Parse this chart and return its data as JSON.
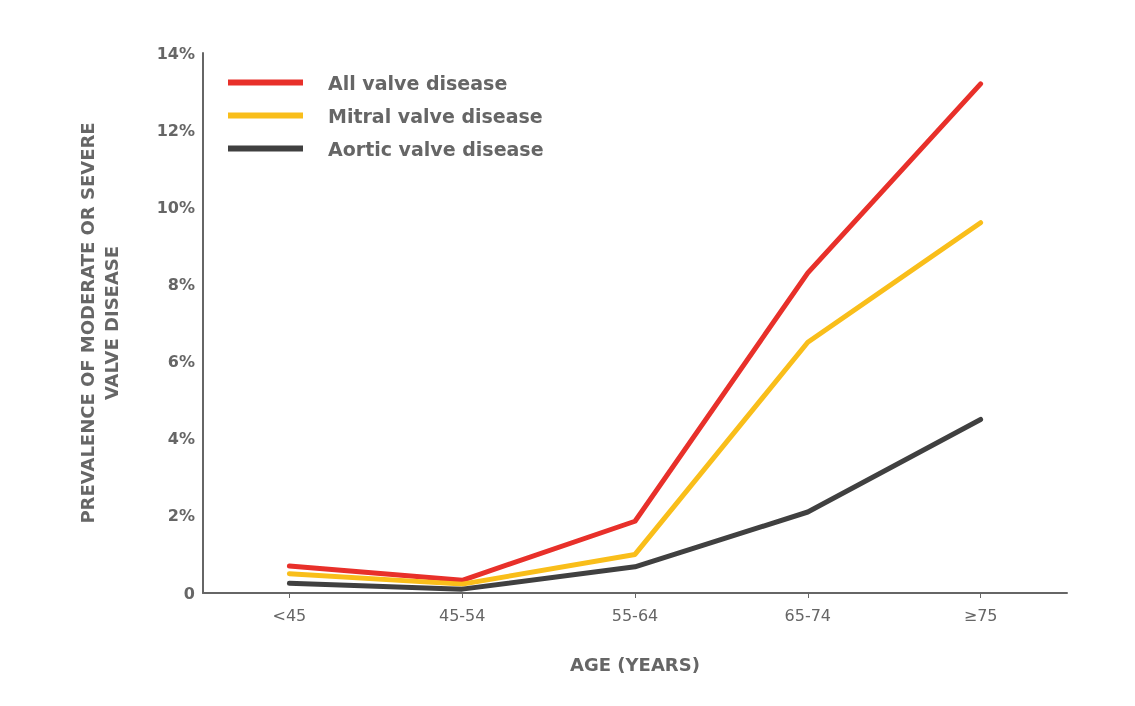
{
  "chart_data": {
    "type": "line",
    "xlabel": "AGE (YEARS)",
    "ylabel": "PREVALENCE OF MODERATE OR SEVERE\nVALVE DISEASE",
    "categories": [
      "<45",
      "45-54",
      "55-64",
      "65-74",
      "≥75"
    ],
    "series": [
      {
        "name": "All valve disease",
        "color": "#e8302a",
        "values": [
          0.7,
          0.33,
          1.86,
          8.3,
          13.2
        ]
      },
      {
        "name": "Mitral valve disease",
        "color": "#f9be1a",
        "values": [
          0.5,
          0.23,
          1.0,
          6.5,
          9.6
        ]
      },
      {
        "name": "Aortic valve disease",
        "color": "#404040",
        "values": [
          0.25,
          0.1,
          0.68,
          2.1,
          4.5
        ]
      }
    ],
    "ylim": [
      0,
      14
    ],
    "yticks": [
      {
        "value": 0,
        "label": "0"
      },
      {
        "value": 2,
        "label": "2%"
      },
      {
        "value": 4,
        "label": "4%"
      },
      {
        "value": 6,
        "label": "6%"
      },
      {
        "value": 8,
        "label": "8%"
      },
      {
        "value": 10,
        "label": "10%"
      },
      {
        "value": 12,
        "label": "12%"
      },
      {
        "value": 14,
        "label": "14%"
      }
    ],
    "grid": false,
    "legend": "top left",
    "marker": "none",
    "line_style": "solid"
  }
}
